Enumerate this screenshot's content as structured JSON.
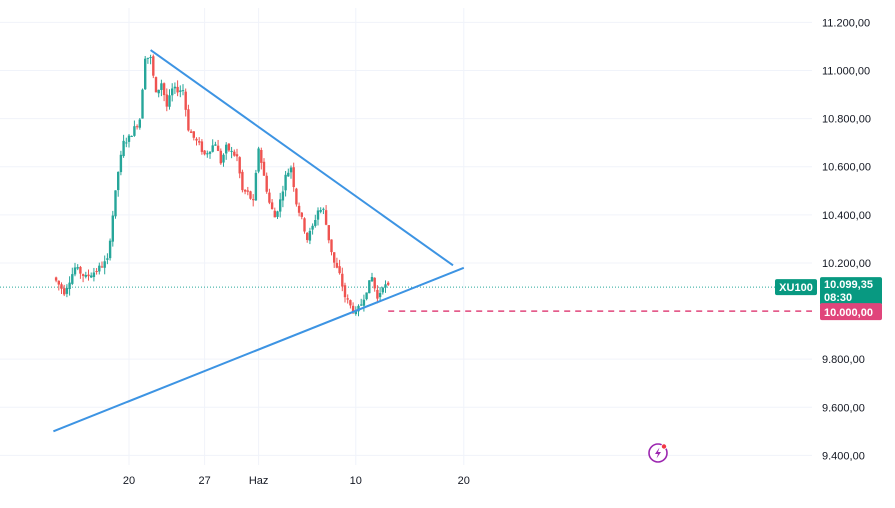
{
  "colors": {
    "up": "#26a69a",
    "down": "#ef5350",
    "trendline": "#3d94e3",
    "grid": "#f0f3fa",
    "price_line": "#26a69a",
    "level_line": "#e0457b",
    "last_price_badge": "#089981",
    "level_badge": "#e0457b",
    "symbol_badge": "#089981"
  },
  "chart_data": {
    "type": "candlestick",
    "symbol": "XU100",
    "y_axis": {
      "ticks": [
        11200,
        11000,
        10800,
        10600,
        10400,
        10200,
        9800,
        9600,
        9400
      ],
      "tick_labels": [
        "11.200,00",
        "11.000,00",
        "10.800,00",
        "10.600,00",
        "10.400,00",
        "10.200,00",
        "9.800,00",
        "9.600,00",
        "9.400,00"
      ],
      "range": [
        9360,
        11260
      ]
    },
    "x_axis": {
      "tick_labels": [
        "20",
        "27",
        "Haz",
        "10",
        "20"
      ],
      "dates": [
        "2023-05-20",
        "2023-05-27",
        "2023-06-01",
        "2023-06-10",
        "2023-06-20"
      ]
    },
    "last_price": {
      "value": 10099.35,
      "label": "10.099,35",
      "countdown": "08:30"
    },
    "horizontal_level": {
      "value": 10000,
      "label": "10.000,00",
      "style": "dashed"
    },
    "trendlines": [
      {
        "name": "resistance",
        "start": [
          "2023-05-22",
          11085
        ],
        "end": [
          "2023-06-19",
          10190
        ]
      },
      {
        "name": "support",
        "start": [
          "2023-05-13",
          9500
        ],
        "end": [
          "2023-06-20",
          10180
        ]
      }
    ],
    "path_anchors": [
      [
        "2023-05-13",
        10140
      ],
      [
        "2023-05-14",
        10080
      ],
      [
        "2023-05-15",
        10180
      ],
      [
        "2023-05-16",
        10140
      ],
      [
        "2023-05-17",
        10170
      ],
      [
        "2023-05-18",
        10210
      ],
      [
        "2023-05-18 12:00",
        10400
      ],
      [
        "2023-05-19",
        10580
      ],
      [
        "2023-05-19 12:00",
        10700
      ],
      [
        "2023-05-20",
        10720
      ],
      [
        "2023-05-20 12:00",
        10760
      ],
      [
        "2023-05-21",
        10800
      ],
      [
        "2023-05-21 12:00",
        11060
      ],
      [
        "2023-05-22",
        11050
      ],
      [
        "2023-05-22 12:00",
        10900
      ],
      [
        "2023-05-23",
        10950
      ],
      [
        "2023-05-23 12:00",
        10850
      ],
      [
        "2023-05-24",
        10920
      ],
      [
        "2023-05-25",
        10920
      ],
      [
        "2023-05-25 12:00",
        10760
      ],
      [
        "2023-05-26",
        10720
      ],
      [
        "2023-05-26 12:00",
        10690
      ],
      [
        "2023-05-27",
        10650
      ],
      [
        "2023-05-28",
        10700
      ],
      [
        "2023-05-28 12:00",
        10620
      ],
      [
        "2023-05-29",
        10680
      ],
      [
        "2023-05-30",
        10640
      ],
      [
        "2023-05-30 12:00",
        10500
      ],
      [
        "2023-05-31",
        10490
      ],
      [
        "2023-05-31 12:00",
        10450
      ],
      [
        "2023-06-01",
        10680
      ],
      [
        "2023-06-01 12:00",
        10560
      ],
      [
        "2023-06-02",
        10450
      ],
      [
        "2023-06-02 12:00",
        10390
      ],
      [
        "2023-06-03",
        10460
      ],
      [
        "2023-06-03 12:00",
        10560
      ],
      [
        "2023-06-04",
        10600
      ],
      [
        "2023-06-04 12:00",
        10450
      ],
      [
        "2023-06-05",
        10380
      ],
      [
        "2023-06-05 12:00",
        10300
      ],
      [
        "2023-06-06",
        10350
      ],
      [
        "2023-06-06 12:00",
        10420
      ],
      [
        "2023-06-07",
        10420
      ],
      [
        "2023-06-07 12:00",
        10300
      ],
      [
        "2023-06-08",
        10200
      ],
      [
        "2023-06-08 12:00",
        10150
      ],
      [
        "2023-06-09",
        10060
      ],
      [
        "2023-06-09 12:00",
        10020
      ],
      [
        "2023-06-10",
        9990
      ],
      [
        "2023-06-10 12:00",
        10030
      ],
      [
        "2023-06-11",
        10090
      ],
      [
        "2023-06-11 12:00",
        10140
      ],
      [
        "2023-06-12",
        10050
      ],
      [
        "2023-06-12 12:00",
        10110
      ],
      [
        "2023-06-13",
        10099
      ]
    ]
  }
}
